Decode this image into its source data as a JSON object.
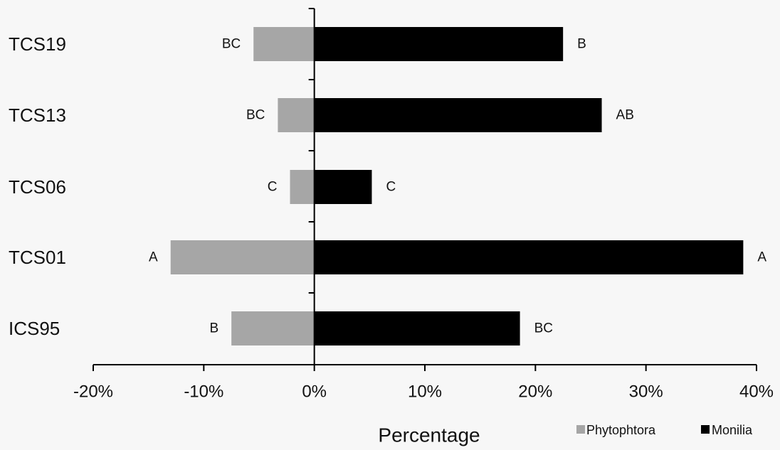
{
  "chart_data": {
    "type": "bar",
    "orientation": "horizontal",
    "categories": [
      "TCS19",
      "TCS13",
      "TCS06",
      "TCS01",
      "ICS95"
    ],
    "series": [
      {
        "name": "Phytophtora",
        "color": "#a6a6a6",
        "values": [
          -0.055,
          -0.033,
          -0.022,
          -0.13,
          -0.075
        ],
        "labels": [
          "BC",
          "BC",
          "C",
          "A",
          "B"
        ]
      },
      {
        "name": "Monilia",
        "color": "#000000",
        "values": [
          0.225,
          0.26,
          0.052,
          0.388,
          0.186
        ],
        "labels": [
          "B",
          "AB",
          "C",
          "A",
          "BC"
        ]
      }
    ],
    "xlim": [
      -0.2,
      0.4
    ],
    "xticks": [
      -0.2,
      -0.1,
      0,
      0.1,
      0.2,
      0.3,
      0.4
    ],
    "xtick_labels": [
      "-20%",
      "-10%",
      "0%",
      "10%",
      "20%",
      "30%",
      "40%"
    ],
    "xlabel": "Percentage",
    "ylabel": "",
    "title": "",
    "grid": false,
    "legend_position": "bottom-right"
  }
}
